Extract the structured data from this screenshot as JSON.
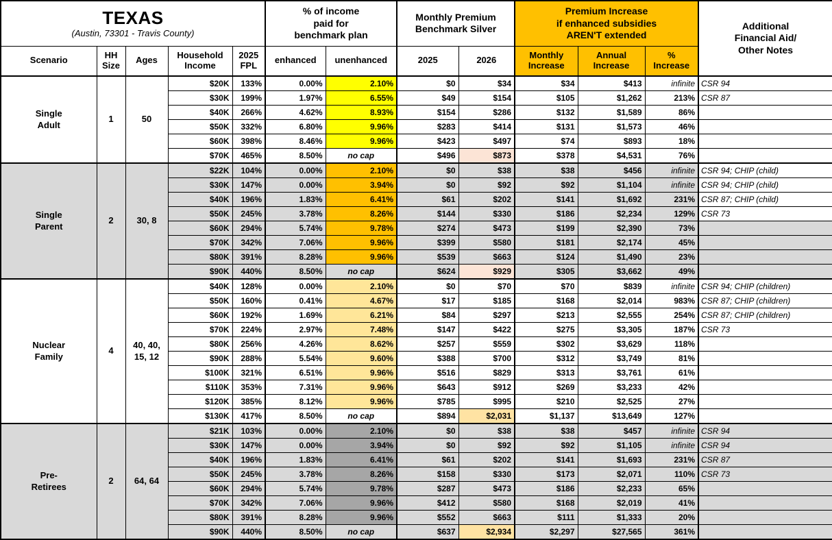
{
  "title": {
    "main": "TEXAS",
    "sub": "(Austin, 73301 - Travis County)"
  },
  "headers": {
    "income_pct_group": "% of income\npaid for\nbenchmark plan",
    "premium_group": "Monthly Premium\nBenchmark Silver",
    "increase_group": "Premium Increase\nif enhanced subsidies\nAREN'T extended",
    "notes_group": "Additional\nFinancial Aid/\nOther Notes",
    "scenario": "Scenario",
    "hh_size": "HH\nSize",
    "ages": "Ages",
    "income": "Household\nIncome",
    "fpl": "2025\nFPL",
    "enhanced": "enhanced",
    "unenhanced": "unenhanced",
    "y2025": "2025",
    "y2026": "2026",
    "monthly_increase": "Monthly\nIncrease",
    "annual_increase": "Annual\nIncrease",
    "pct_increase": "%\nIncrease"
  },
  "labels": {
    "no_cap": "no cap",
    "infinite": "infinite"
  },
  "colors": {
    "header_orange": "#FFC000",
    "row_gray": "#D9D9D9",
    "single_adult_unenhanced": "#FFFF00",
    "single_parent_unenhanced": "#FFC000",
    "nuclear_family_unenhanced": "#FFE699",
    "pre_retirees_unenhanced": "#A6A6A6",
    "highlight_2026_peach": "#FCE4D6",
    "highlight_2026_amber": "#FFE3A3"
  },
  "groups": [
    {
      "scenario": "Single\nAdult",
      "hh_size": "1",
      "ages": "50",
      "shade": "white",
      "unenhanced_bg": "#FFFF00",
      "rows": [
        {
          "income": "$20K",
          "fpl": "133%",
          "enhanced": "0.00%",
          "unenhanced": "2.10%",
          "premium_2025": "$0",
          "premium_2026": "$34",
          "monthly_increase": "$34",
          "annual_increase": "$413",
          "pct_increase": "infinite",
          "note": "CSR 94"
        },
        {
          "income": "$30K",
          "fpl": "199%",
          "enhanced": "1.97%",
          "unenhanced": "6.55%",
          "premium_2025": "$49",
          "premium_2026": "$154",
          "monthly_increase": "$105",
          "annual_increase": "$1,262",
          "pct_increase": "213%",
          "note": "CSR 87"
        },
        {
          "income": "$40K",
          "fpl": "266%",
          "enhanced": "4.62%",
          "unenhanced": "8.93%",
          "premium_2025": "$154",
          "premium_2026": "$286",
          "monthly_increase": "$132",
          "annual_increase": "$1,589",
          "pct_increase": "86%",
          "note": ""
        },
        {
          "income": "$50K",
          "fpl": "332%",
          "enhanced": "6.80%",
          "unenhanced": "9.96%",
          "premium_2025": "$283",
          "premium_2026": "$414",
          "monthly_increase": "$131",
          "annual_increase": "$1,573",
          "pct_increase": "46%",
          "note": ""
        },
        {
          "income": "$60K",
          "fpl": "398%",
          "enhanced": "8.46%",
          "unenhanced": "9.96%",
          "premium_2025": "$423",
          "premium_2026": "$497",
          "monthly_increase": "$74",
          "annual_increase": "$893",
          "pct_increase": "18%",
          "note": ""
        },
        {
          "income": "$70K",
          "fpl": "465%",
          "enhanced": "8.50%",
          "unenhanced": "no cap",
          "premium_2025": "$496",
          "premium_2026": "$873",
          "premium_2026_bg": "#FCE4D6",
          "monthly_increase": "$378",
          "annual_increase": "$4,531",
          "pct_increase": "76%",
          "note": ""
        }
      ]
    },
    {
      "scenario": "Single\nParent",
      "hh_size": "2",
      "ages": "30, 8",
      "shade": "gray",
      "unenhanced_bg": "#FFC000",
      "rows": [
        {
          "income": "$22K",
          "fpl": "104%",
          "enhanced": "0.00%",
          "unenhanced": "2.10%",
          "premium_2025": "$0",
          "premium_2026": "$38",
          "monthly_increase": "$38",
          "annual_increase": "$456",
          "pct_increase": "infinite",
          "note": "CSR 94; CHIP (child)",
          "note_bg": "#FFFFFF"
        },
        {
          "income": "$30K",
          "fpl": "147%",
          "enhanced": "0.00%",
          "unenhanced": "3.94%",
          "premium_2025": "$0",
          "premium_2026": "$92",
          "monthly_increase": "$92",
          "annual_increase": "$1,104",
          "pct_increase": "infinite",
          "note": "CSR 94; CHIP (child)",
          "note_bg": "#FFFFFF"
        },
        {
          "income": "$40K",
          "fpl": "196%",
          "enhanced": "1.83%",
          "unenhanced": "6.41%",
          "premium_2025": "$61",
          "premium_2026": "$202",
          "monthly_increase": "$141",
          "annual_increase": "$1,692",
          "pct_increase": "231%",
          "note": "CSR 87; CHIP (child)",
          "note_bg": "#FFFFFF"
        },
        {
          "income": "$50K",
          "fpl": "245%",
          "enhanced": "3.78%",
          "unenhanced": "8.26%",
          "premium_2025": "$144",
          "premium_2026": "$330",
          "monthly_increase": "$186",
          "annual_increase": "$2,234",
          "pct_increase": "129%",
          "note": "CSR 73",
          "note_bg": "#FFFFFF"
        },
        {
          "income": "$60K",
          "fpl": "294%",
          "enhanced": "5.74%",
          "unenhanced": "9.78%",
          "premium_2025": "$274",
          "premium_2026": "$473",
          "monthly_increase": "$199",
          "annual_increase": "$2,390",
          "pct_increase": "73%",
          "note": ""
        },
        {
          "income": "$70K",
          "fpl": "342%",
          "enhanced": "7.06%",
          "unenhanced": "9.96%",
          "premium_2025": "$399",
          "premium_2026": "$580",
          "monthly_increase": "$181",
          "annual_increase": "$2,174",
          "pct_increase": "45%",
          "note": ""
        },
        {
          "income": "$80K",
          "fpl": "391%",
          "enhanced": "8.28%",
          "unenhanced": "9.96%",
          "premium_2025": "$539",
          "premium_2026": "$663",
          "monthly_increase": "$124",
          "annual_increase": "$1,490",
          "pct_increase": "23%",
          "note": ""
        },
        {
          "income": "$90K",
          "fpl": "440%",
          "enhanced": "8.50%",
          "unenhanced": "no cap",
          "premium_2025": "$624",
          "premium_2026": "$929",
          "premium_2026_bg": "#FCE4D6",
          "monthly_increase": "$305",
          "annual_increase": "$3,662",
          "pct_increase": "49%",
          "note": ""
        }
      ]
    },
    {
      "scenario": "Nuclear\nFamily",
      "hh_size": "4",
      "ages": "40, 40,\n15, 12",
      "shade": "white",
      "unenhanced_bg": "#FFE699",
      "rows": [
        {
          "income": "$40K",
          "fpl": "128%",
          "enhanced": "0.00%",
          "unenhanced": "2.10%",
          "premium_2025": "$0",
          "premium_2026": "$70",
          "monthly_increase": "$70",
          "annual_increase": "$839",
          "pct_increase": "infinite",
          "note": "CSR 94; CHIP (children)"
        },
        {
          "income": "$50K",
          "fpl": "160%",
          "enhanced": "0.41%",
          "unenhanced": "4.67%",
          "premium_2025": "$17",
          "premium_2026": "$185",
          "monthly_increase": "$168",
          "annual_increase": "$2,014",
          "pct_increase": "983%",
          "note": "CSR 87; CHIP (children)"
        },
        {
          "income": "$60K",
          "fpl": "192%",
          "enhanced": "1.69%",
          "unenhanced": "6.21%",
          "premium_2025": "$84",
          "premium_2026": "$297",
          "monthly_increase": "$213",
          "annual_increase": "$2,555",
          "pct_increase": "254%",
          "note": "CSR 87; CHIP (children)"
        },
        {
          "income": "$70K",
          "fpl": "224%",
          "enhanced": "2.97%",
          "unenhanced": "7.48%",
          "premium_2025": "$147",
          "premium_2026": "$422",
          "monthly_increase": "$275",
          "annual_increase": "$3,305",
          "pct_increase": "187%",
          "note": "CSR 73"
        },
        {
          "income": "$80K",
          "fpl": "256%",
          "enhanced": "4.26%",
          "unenhanced": "8.62%",
          "premium_2025": "$257",
          "premium_2026": "$559",
          "monthly_increase": "$302",
          "annual_increase": "$3,629",
          "pct_increase": "118%",
          "note": ""
        },
        {
          "income": "$90K",
          "fpl": "288%",
          "enhanced": "5.54%",
          "unenhanced": "9.60%",
          "premium_2025": "$388",
          "premium_2026": "$700",
          "monthly_increase": "$312",
          "annual_increase": "$3,749",
          "pct_increase": "81%",
          "note": ""
        },
        {
          "income": "$100K",
          "fpl": "321%",
          "enhanced": "6.51%",
          "unenhanced": "9.96%",
          "premium_2025": "$516",
          "premium_2026": "$829",
          "monthly_increase": "$313",
          "annual_increase": "$3,761",
          "pct_increase": "61%",
          "note": ""
        },
        {
          "income": "$110K",
          "fpl": "353%",
          "enhanced": "7.31%",
          "unenhanced": "9.96%",
          "premium_2025": "$643",
          "premium_2026": "$912",
          "monthly_increase": "$269",
          "annual_increase": "$3,233",
          "pct_increase": "42%",
          "note": ""
        },
        {
          "income": "$120K",
          "fpl": "385%",
          "enhanced": "8.12%",
          "unenhanced": "9.96%",
          "premium_2025": "$785",
          "premium_2026": "$995",
          "monthly_increase": "$210",
          "annual_increase": "$2,525",
          "pct_increase": "27%",
          "note": ""
        },
        {
          "income": "$130K",
          "fpl": "417%",
          "enhanced": "8.50%",
          "unenhanced": "no cap",
          "premium_2025": "$894",
          "premium_2026": "$2,031",
          "premium_2026_bg": "#FFE3A3",
          "monthly_increase": "$1,137",
          "annual_increase": "$13,649",
          "pct_increase": "127%",
          "note": ""
        }
      ]
    },
    {
      "scenario": "Pre-\nRetirees",
      "hh_size": "2",
      "ages": "64, 64",
      "shade": "gray",
      "unenhanced_bg": "#A6A6A6",
      "rows": [
        {
          "income": "$21K",
          "fpl": "103%",
          "enhanced": "0.00%",
          "unenhanced": "2.10%",
          "premium_2025": "$0",
          "premium_2026": "$38",
          "monthly_increase": "$38",
          "annual_increase": "$457",
          "pct_increase": "infinite",
          "note": "CSR 94"
        },
        {
          "income": "$30K",
          "fpl": "147%",
          "enhanced": "0.00%",
          "unenhanced": "3.94%",
          "premium_2025": "$0",
          "premium_2026": "$92",
          "monthly_increase": "$92",
          "annual_increase": "$1,105",
          "pct_increase": "infinite",
          "note": "CSR 94"
        },
        {
          "income": "$40K",
          "fpl": "196%",
          "enhanced": "1.83%",
          "unenhanced": "6.41%",
          "premium_2025": "$61",
          "premium_2026": "$202",
          "monthly_increase": "$141",
          "annual_increase": "$1,693",
          "pct_increase": "231%",
          "note": "CSR 87"
        },
        {
          "income": "$50K",
          "fpl": "245%",
          "enhanced": "3.78%",
          "unenhanced": "8.26%",
          "premium_2025": "$158",
          "premium_2026": "$330",
          "monthly_increase": "$173",
          "annual_increase": "$2,071",
          "pct_increase": "110%",
          "note": "CSR 73"
        },
        {
          "income": "$60K",
          "fpl": "294%",
          "enhanced": "5.74%",
          "unenhanced": "9.78%",
          "premium_2025": "$287",
          "premium_2026": "$473",
          "monthly_increase": "$186",
          "annual_increase": "$2,233",
          "pct_increase": "65%",
          "note": ""
        },
        {
          "income": "$70K",
          "fpl": "342%",
          "enhanced": "7.06%",
          "unenhanced": "9.96%",
          "premium_2025": "$412",
          "premium_2026": "$580",
          "monthly_increase": "$168",
          "annual_increase": "$2,019",
          "pct_increase": "41%",
          "note": ""
        },
        {
          "income": "$80K",
          "fpl": "391%",
          "enhanced": "8.28%",
          "unenhanced": "9.96%",
          "premium_2025": "$552",
          "premium_2026": "$663",
          "monthly_increase": "$111",
          "annual_increase": "$1,333",
          "pct_increase": "20%",
          "note": ""
        },
        {
          "income": "$90K",
          "fpl": "440%",
          "enhanced": "8.50%",
          "unenhanced": "no cap",
          "premium_2025": "$637",
          "premium_2026": "$2,934",
          "premium_2026_bg": "#FFE3A3",
          "monthly_increase": "$2,297",
          "annual_increase": "$27,565",
          "pct_increase": "361%",
          "note": ""
        }
      ]
    }
  ]
}
